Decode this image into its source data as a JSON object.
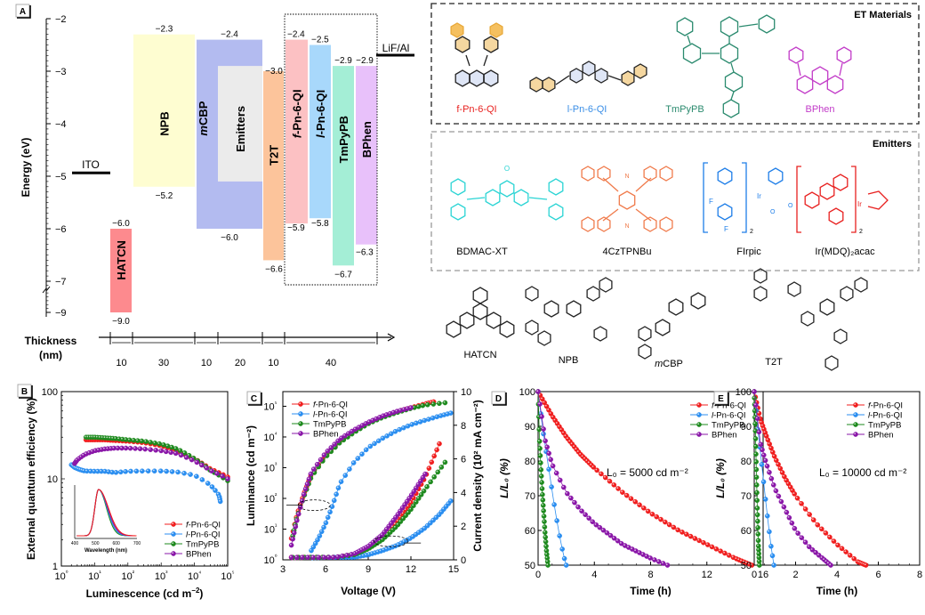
{
  "chart_data": [
    {
      "panel": "A",
      "type": "diagram-energy-levels",
      "ylabel": "Energy (eV)",
      "yticks": [
        "-2",
        "-3",
        "-4",
        "-5",
        "-6",
        "-7",
        "-9"
      ],
      "ylim": [
        -9,
        -2
      ],
      "axis_break": "between -7 and -9",
      "electrodes": [
        {
          "name": "ITO",
          "level": -4.8
        },
        {
          "name": "LiF/Al",
          "level": -2.8
        }
      ],
      "layers": [
        {
          "name": "HATCN",
          "lumo": -6.0,
          "homo": -9.0,
          "lumo_label": "−6.0",
          "homo_label": "−9.0",
          "color": "#fd8a8e",
          "thickness": 10
        },
        {
          "name": "NPB",
          "lumo": -2.3,
          "homo": -5.2,
          "lumo_label": "−2.3",
          "homo_label": "−5.2",
          "color": "#fefdd1",
          "thickness": 30
        },
        {
          "name": "mCBP",
          "lumo": -2.4,
          "homo": -6.0,
          "lumo_label": "−2.4",
          "homo_label": "−6.0",
          "color": "#b3bbf0",
          "thickness": 10
        },
        {
          "name": "Emitters",
          "lumo": -2.9,
          "homo": -5.1,
          "lumo_label": "",
          "homo_label": "",
          "color": "#ebebeb",
          "thickness": 20
        },
        {
          "name": "T2T",
          "lumo": -3.0,
          "homo": -6.6,
          "lumo_label": "−3.0",
          "homo_label": "−6.6",
          "color": "#fcc49b",
          "thickness": 10
        },
        {
          "name": "f-Pn-6-QI",
          "lumo": -2.4,
          "homo": -5.9,
          "lumo_label": "−2.4",
          "homo_label": "−5.9",
          "color": "#fcc1c3",
          "thickness": 40
        },
        {
          "name": "l-Pn-6-QI",
          "lumo": -2.5,
          "homo": -5.8,
          "lumo_label": "−2.5",
          "homo_label": "−5.8",
          "color": "#a8d8fb",
          "thickness": 40
        },
        {
          "name": "TmPyPB",
          "lumo": -2.9,
          "homo": -6.7,
          "lumo_label": "−2.9",
          "homo_label": "−6.7",
          "color": "#a4eed6",
          "thickness": 40
        },
        {
          "name": "BPhen",
          "lumo": -2.9,
          "homo": -6.3,
          "lumo_label": "−2.9",
          "homo_label": "−6.3",
          "color": "#e8c1fa",
          "thickness": 40
        }
      ],
      "thickness_label": "Thickness",
      "thickness_unit": "(nm)",
      "thickness_values": [
        "10",
        "30",
        "10",
        "20",
        "10",
        "40"
      ]
    },
    {
      "panel": "B",
      "type": "scatter",
      "xlabel": "Luminescence (cd m⁻²)",
      "ylabel": "External quantum efficiency (%)",
      "xscale": "log",
      "yscale": "log",
      "xlim": [
        1,
        100000
      ],
      "ylim": [
        1,
        100
      ],
      "xticks": [
        "10⁰",
        "10¹",
        "10²",
        "10³",
        "10⁴",
        "10⁵"
      ],
      "yticks": [
        "1",
        "10",
        "100"
      ],
      "legend": "bottom-right",
      "series": [
        {
          "name": "f-Pn-6-QI",
          "color": "#f01e1e",
          "x": [
            5.5,
            10,
            20,
            40,
            100,
            300,
            1000,
            3000,
            10000,
            30000,
            100000
          ],
          "y": [
            28,
            28,
            28,
            27.5,
            27,
            26,
            24,
            21,
            17,
            13,
            10.5
          ]
        },
        {
          "name": "l-Pn-6-QI",
          "color": "#2b8ef0",
          "x": [
            2,
            2.5,
            3.5,
            5,
            10,
            20,
            40,
            100,
            300,
            1000,
            3000,
            10000,
            30000,
            55000,
            60000
          ],
          "y": [
            14.5,
            13.5,
            12.8,
            12.3,
            12.2,
            12.2,
            11.8,
            12.2,
            12.3,
            12.3,
            12,
            11,
            8.5,
            6.5,
            5.5
          ]
        },
        {
          "name": "TmPyPB",
          "color": "#1e8a1e",
          "x": [
            5.5,
            10,
            20,
            40,
            100,
            300,
            1000,
            3000,
            10000,
            30000,
            100000
          ],
          "y": [
            30,
            30,
            29.5,
            29,
            28,
            27,
            25,
            22,
            17,
            12.5,
            9.5
          ]
        },
        {
          "name": "BPhen",
          "color": "#8a17a8",
          "x": [
            2.5,
            3,
            5,
            10,
            20,
            40,
            100,
            300,
            1000,
            3000,
            10000,
            30000,
            100000
          ],
          "y": [
            15,
            16.5,
            19,
            21,
            22,
            22.5,
            22.5,
            22,
            21,
            19.5,
            16,
            12.5,
            10
          ]
        }
      ],
      "inset": {
        "xlabel": "Wavelength (nm)",
        "xticks": [
          "400",
          "500",
          "600",
          "700"
        ],
        "xlim": [
          400,
          700
        ],
        "peak_nm": 515
      }
    },
    {
      "panel": "C",
      "type": "scatter",
      "xlabel": "Voltage (V)",
      "ylabel": "Luminance (cd m⁻²)",
      "y2label": "Current density (10² mA cm⁻²)",
      "xlim": [
        3,
        15
      ],
      "ylim": [
        1,
        300000
      ],
      "y2lim": [
        0,
        10
      ],
      "xticks": [
        "3",
        "6",
        "9",
        "12",
        "15"
      ],
      "yticks": [
        "10⁰",
        "10¹",
        "10²",
        "10³",
        "10⁴",
        "10⁵"
      ],
      "y2ticks": [
        "0",
        "2",
        "4",
        "6",
        "8",
        "10"
      ],
      "legend": "top-left",
      "series": [
        {
          "name": "f-Pn-6-QI",
          "color": "#f01e1e",
          "luminance_V": [
            3.6,
            4,
            4.5,
            5,
            6,
            7,
            8,
            9,
            10,
            11,
            12,
            13,
            13.6
          ],
          "luminance": [
            5,
            30,
            150,
            600,
            2500,
            7000,
            15000,
            28000,
            45000,
            65000,
            90000,
            120000,
            140000
          ],
          "current_V": [
            3.6,
            6,
            8,
            9,
            10,
            11,
            12,
            13,
            14
          ],
          "current": [
            0,
            0.05,
            0.3,
            0.7,
            1.3,
            2.2,
            3.4,
            4.9,
            6.9
          ]
        },
        {
          "name": "l-Pn-6-QI",
          "color": "#2b8ef0",
          "luminance_V": [
            5,
            5.5,
            6,
            6.5,
            7,
            8,
            9,
            10,
            11,
            12,
            13,
            14,
            14.8
          ],
          "luminance": [
            2,
            5,
            15,
            60,
            300,
            1500,
            4500,
            9000,
            16000,
            25000,
            35000,
            48000,
            60000
          ],
          "current_V": [
            5,
            7,
            8,
            9,
            10,
            11,
            12,
            13,
            14,
            14.8
          ],
          "current": [
            0,
            0.05,
            0.15,
            0.3,
            0.55,
            0.85,
            1.3,
            1.9,
            2.7,
            3.5
          ]
        },
        {
          "name": "TmPyPB",
          "color": "#1e8a1e",
          "luminance_V": [
            3.7,
            4,
            4.5,
            5,
            6,
            7,
            8,
            9,
            10,
            11,
            12,
            13,
            14.4
          ],
          "luminance": [
            6,
            25,
            120,
            500,
            2200,
            6500,
            14000,
            27000,
            43000,
            62000,
            85000,
            110000,
            130000
          ],
          "current_V": [
            3.7,
            6,
            8,
            9,
            10,
            11,
            12,
            13,
            14.4
          ],
          "current": [
            0,
            0.05,
            0.3,
            0.65,
            1.2,
            2,
            3,
            4.2,
            5.8
          ]
        },
        {
          "name": "BPhen",
          "color": "#8a17a8",
          "luminance_V": [
            3.6,
            4,
            4.5,
            5,
            6,
            7,
            8,
            9,
            10,
            11,
            12
          ],
          "luminance": [
            3,
            20,
            150,
            700,
            3000,
            8500,
            17000,
            30000,
            48000,
            68000,
            90000
          ],
          "current_V": [
            3.6,
            6,
            8,
            9,
            10,
            11,
            12,
            13
          ],
          "current": [
            0,
            0.05,
            0.35,
            0.8,
            1.5,
            2.6,
            3.8,
            5.1
          ]
        }
      ]
    },
    {
      "panel": "D",
      "type": "line",
      "xlabel": "Time (h)",
      "ylabel": "L/L₀ (%)",
      "xlim": [
        0,
        16
      ],
      "ylim": [
        50,
        100
      ],
      "xticks": [
        "0",
        "4",
        "8",
        "12",
        "16"
      ],
      "yticks": [
        "50",
        "60",
        "70",
        "80",
        "90",
        "100"
      ],
      "annotation": "L₀ = 5000 cd m⁻²",
      "legend": "top-right",
      "series": [
        {
          "name": "f-Pn-6-QI",
          "color": "#f01e1e",
          "x": [
            0,
            1,
            2,
            3,
            4,
            6,
            8,
            10,
            12,
            14,
            15.2
          ],
          "y": [
            100,
            93,
            87,
            82,
            78,
            71,
            65,
            60,
            56,
            52,
            50
          ]
        },
        {
          "name": "l-Pn-6-QI",
          "color": "#2b8ef0",
          "x": [
            0,
            0.3,
            0.6,
            0.9,
            1.2,
            1.5,
            1.8,
            2.0
          ],
          "y": [
            100,
            90,
            82,
            74,
            66,
            59,
            53,
            50
          ]
        },
        {
          "name": "TmPyPB",
          "color": "#1e8a1e",
          "x": [
            0,
            0.1,
            0.2,
            0.3,
            0.4,
            0.5,
            0.6,
            0.7
          ],
          "y": [
            100,
            86,
            78,
            71,
            65,
            59,
            54,
            50
          ]
        },
        {
          "name": "BPhen",
          "color": "#8a17a8",
          "x": [
            0,
            0.5,
            1,
            2,
            3,
            4,
            5,
            6,
            7,
            8,
            9.2
          ],
          "y": [
            100,
            86,
            79,
            71,
            66,
            62,
            59,
            56,
            54,
            52,
            50
          ]
        }
      ]
    },
    {
      "panel": "E",
      "type": "line",
      "xlabel": "Time (h)",
      "ylabel": "L/L₀ (%)",
      "xlim": [
        0,
        8
      ],
      "ylim": [
        50,
        100
      ],
      "xticks": [
        "0",
        "2",
        "4",
        "6",
        "8"
      ],
      "yticks": [
        "50",
        "60",
        "70",
        "80",
        "90",
        "100"
      ],
      "annotation": "L₀ = 10000 cd m⁻²",
      "legend": "top-right",
      "series": [
        {
          "name": "f-Pn-6-QI",
          "color": "#f01e1e",
          "x": [
            0,
            0.3,
            0.6,
            1,
            1.5,
            2,
            3,
            4,
            5,
            5.4
          ],
          "y": [
            100,
            92,
            87,
            81,
            75,
            70,
            62,
            56,
            51,
            50
          ]
        },
        {
          "name": "l-Pn-6-QI",
          "color": "#2b8ef0",
          "x": [
            0,
            0.2,
            0.4,
            0.6,
            0.8,
            0.95
          ],
          "y": [
            100,
            88,
            77,
            66,
            56,
            50
          ]
        },
        {
          "name": "TmPyPB",
          "color": "#1e8a1e",
          "x": [
            0,
            0.05,
            0.1,
            0.15,
            0.2,
            0.25
          ],
          "y": [
            100,
            90,
            78,
            66,
            56,
            50
          ]
        },
        {
          "name": "BPhen",
          "color": "#8a17a8",
          "x": [
            0,
            0.3,
            0.6,
            1,
            1.5,
            2,
            2.7,
            3.3,
            3.7
          ],
          "y": [
            100,
            85,
            79,
            72,
            66,
            60,
            55,
            52,
            50
          ]
        }
      ]
    }
  ],
  "structures": {
    "et_title": "ET Materials",
    "et": [
      {
        "name": "f-Pn-6-QI",
        "color": "#e8211f"
      },
      {
        "name": "l-Pn-6-QI",
        "color": "#3a8ee6"
      },
      {
        "name": "TmPyPB",
        "color": "#2a8a6e"
      },
      {
        "name": "BPhen",
        "color": "#c23bc8"
      }
    ],
    "emitters_title": "Emitters",
    "emitters": [
      {
        "name": "BDMAC-XT",
        "color": "#2ad4d4"
      },
      {
        "name": "4CzTPNBu",
        "color": "#f07a4a"
      },
      {
        "name": "FIrpic",
        "color": "#1e7ee8"
      },
      {
        "name": "Ir(MDQ)₂acac",
        "color": "#e8201f"
      }
    ],
    "others": [
      {
        "name": "HATCN"
      },
      {
        "name": "NPB"
      },
      {
        "name": "mCBP"
      },
      {
        "name": "T2T"
      }
    ]
  },
  "panel_labels": [
    "A",
    "B",
    "C",
    "D",
    "E"
  ]
}
